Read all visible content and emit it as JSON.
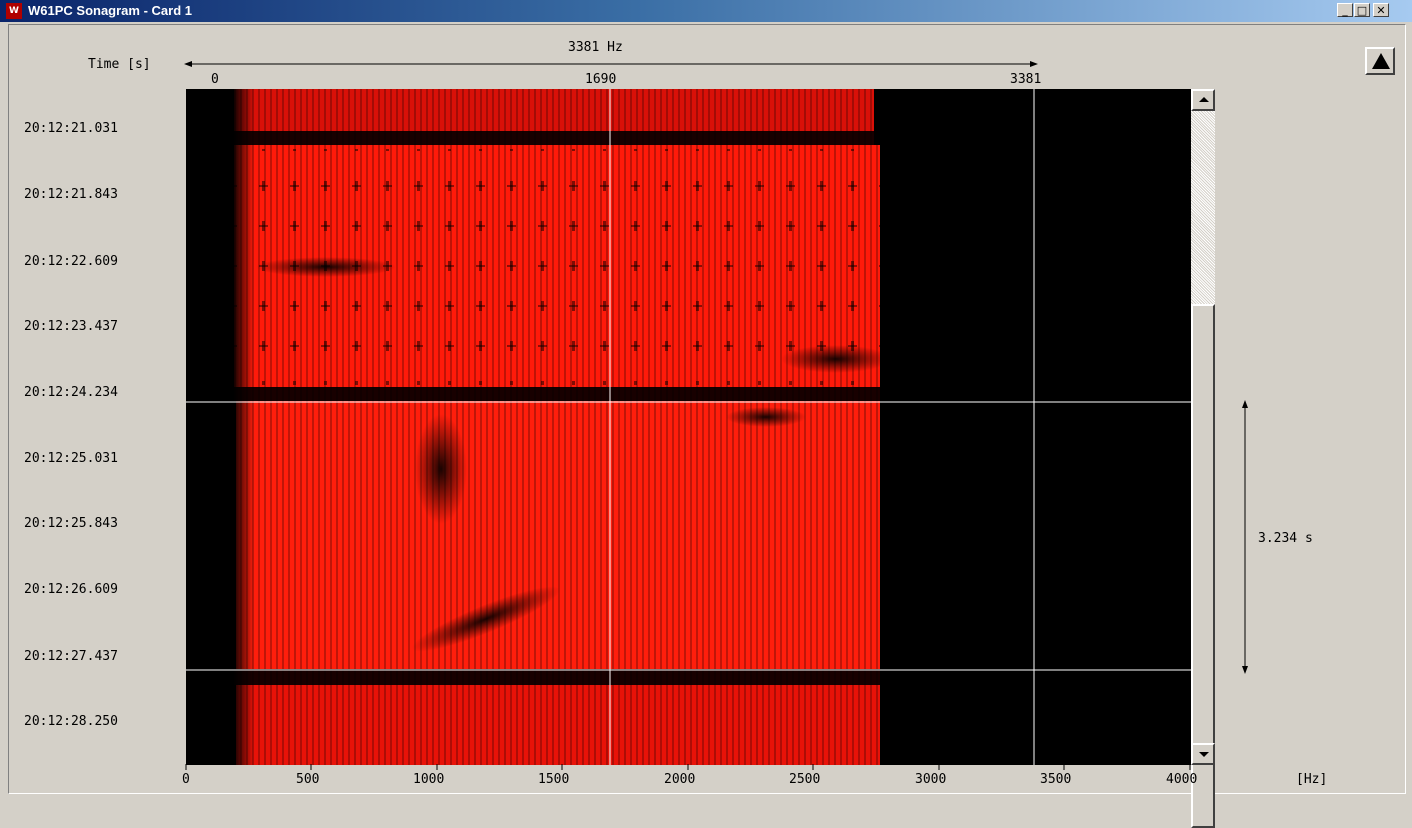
{
  "window": {
    "title": "W61PC Sonagram  - Card 1",
    "icon_text": "W",
    "buttons": {
      "minimize": "_",
      "maximize": "□",
      "close": "✕"
    }
  },
  "toolbar": {
    "up_icon": "triangle-up-icon"
  },
  "top_scale": {
    "span_label": "3381 Hz",
    "time_label": "Time  [s]",
    "ticks": [
      "0",
      "1690",
      "3381"
    ]
  },
  "time_labels": [
    "20:12:21.031",
    "20:12:21.843",
    "20:12:22.609",
    "20:12:23.437",
    "20:12:24.234",
    "20:12:25.031",
    "20:12:25.843",
    "20:12:26.609",
    "20:12:27.437",
    "20:12:28.250"
  ],
  "freq_axis": {
    "ticks": [
      "0",
      "500",
      "1000",
      "1500",
      "2000",
      "2500",
      "3000",
      "3500",
      "4000"
    ],
    "unit": "[Hz]"
  },
  "duration_label": "3.234 s",
  "colors": {
    "signal": "#ff1a0a",
    "background": "#000000",
    "cursor": "#ffffff"
  }
}
